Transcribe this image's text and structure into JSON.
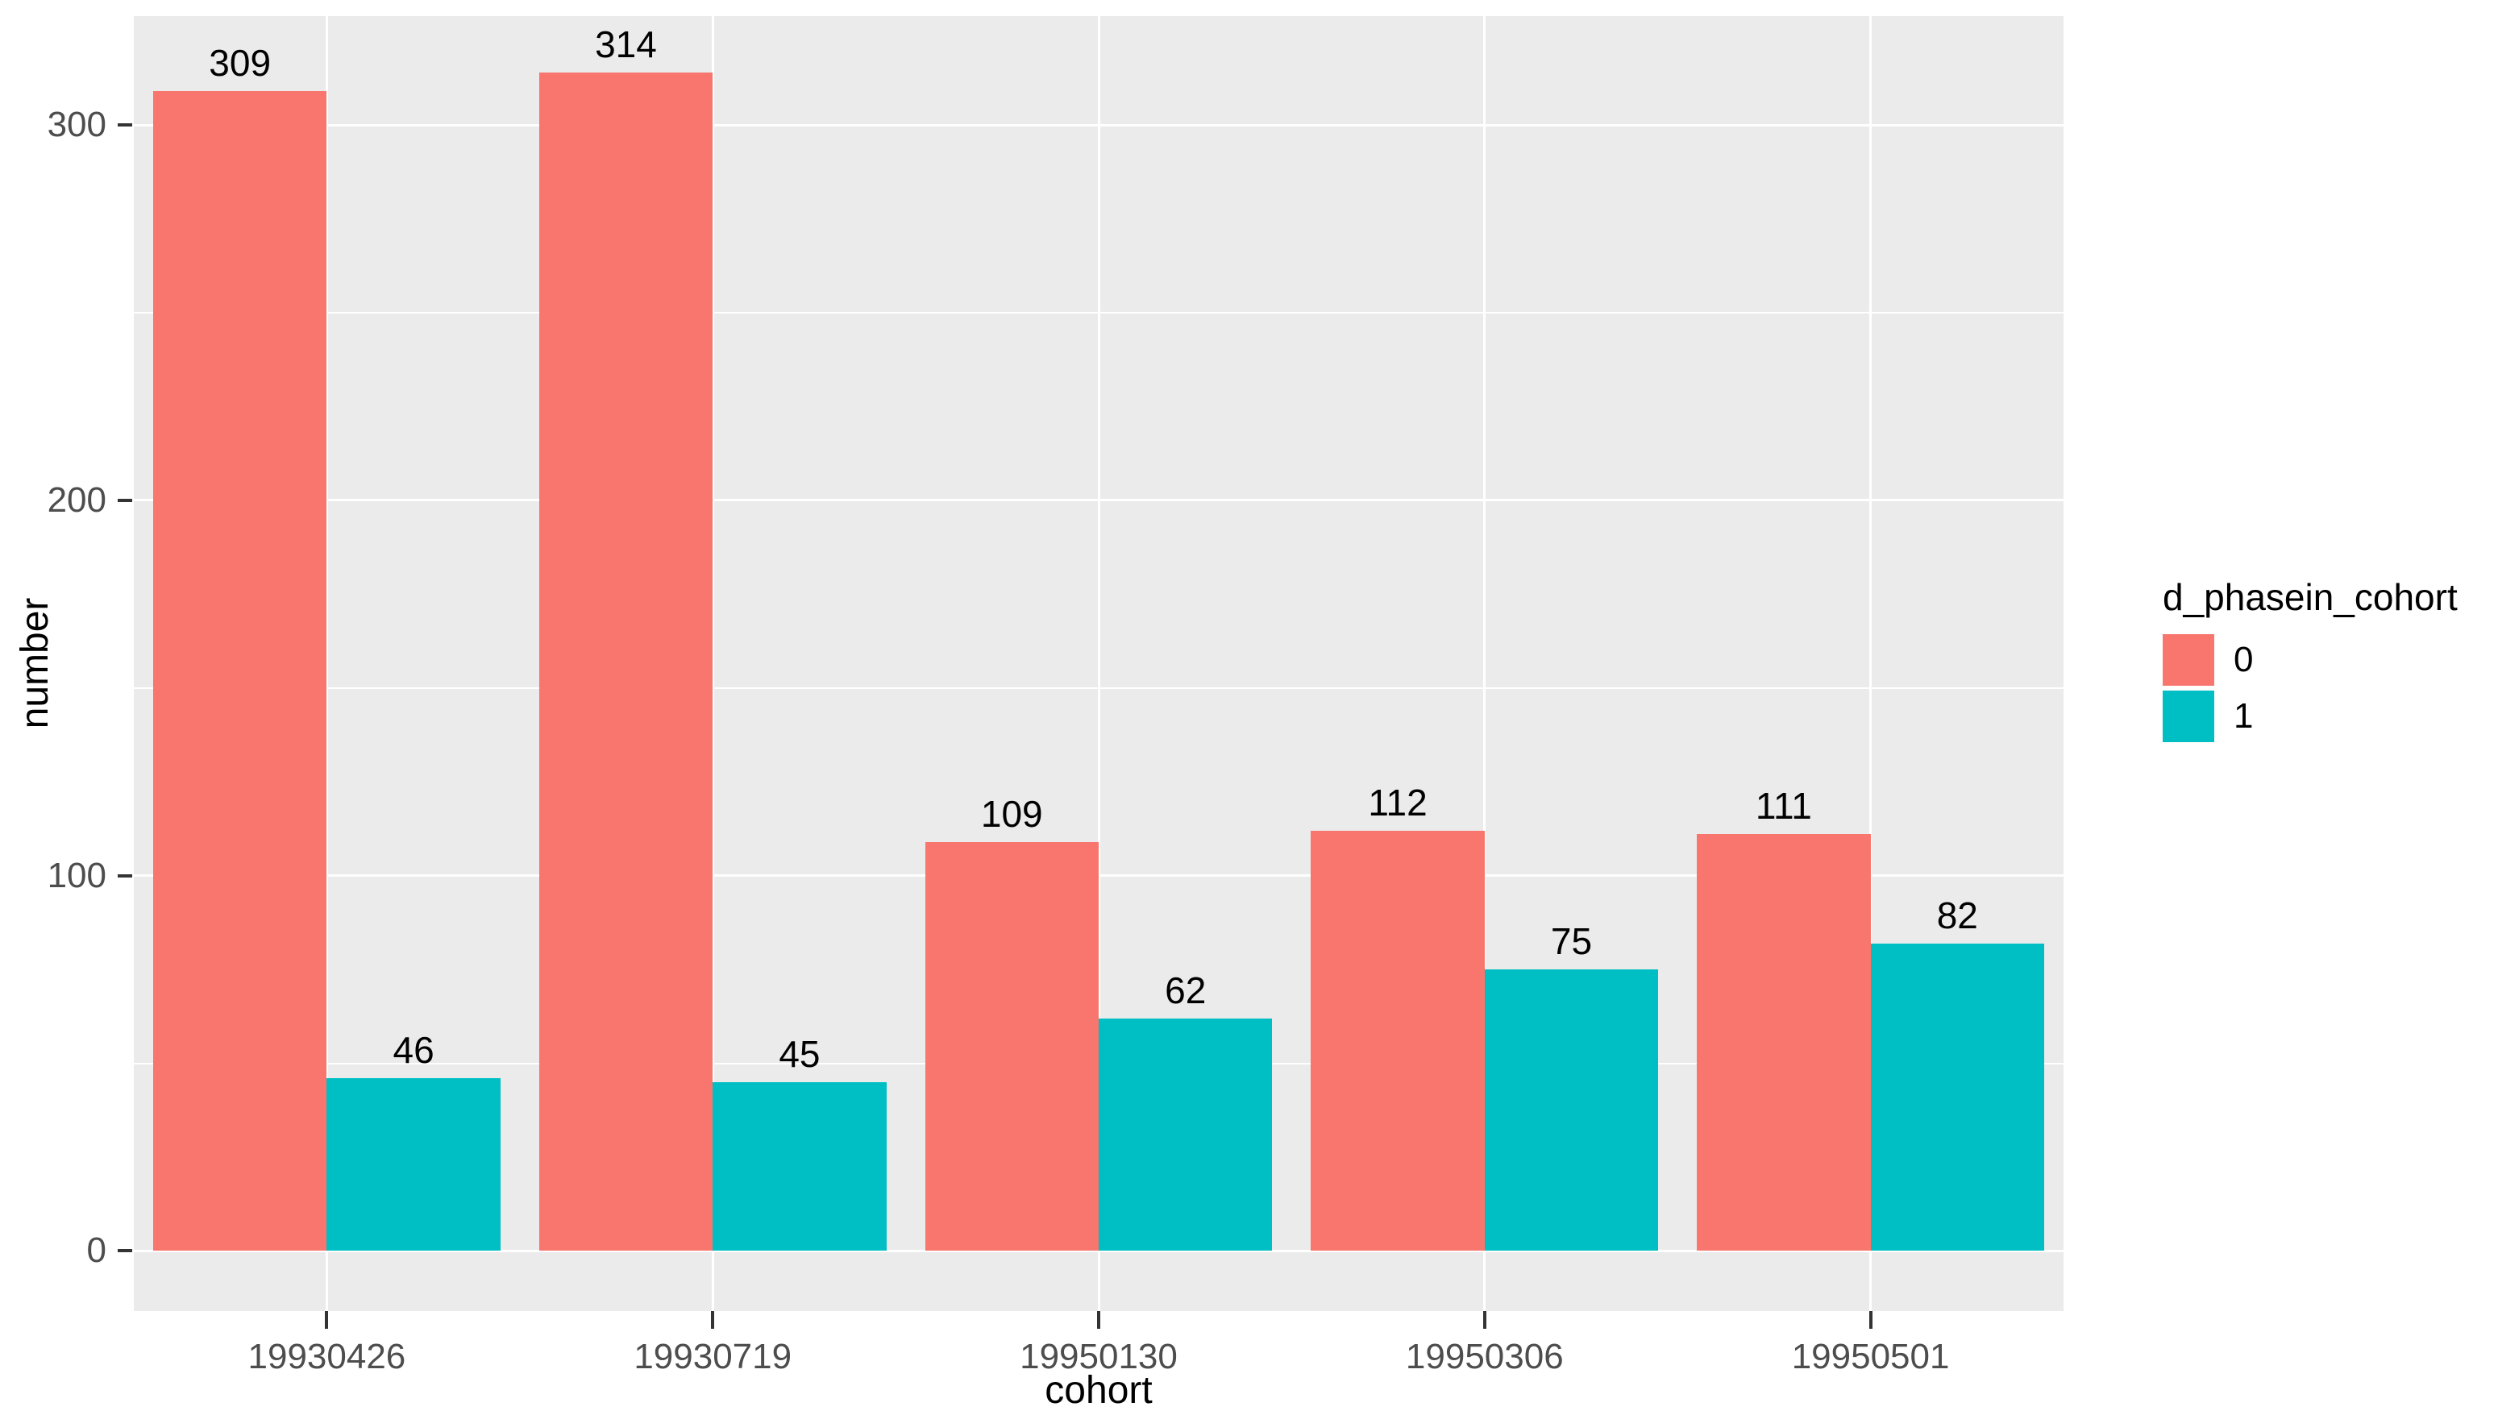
{
  "chart_data": {
    "type": "bar",
    "title": "",
    "categories": [
      "19930426",
      "19930719",
      "19950130",
      "19950306",
      "19950501"
    ],
    "series": [
      {
        "name": "0",
        "color": "#F8766D",
        "values": [
          309,
          314,
          109,
          112,
          111
        ]
      },
      {
        "name": "1",
        "color": "#00BFC4",
        "values": [
          46,
          45,
          62,
          75,
          82
        ]
      }
    ],
    "xlabel": "cohort",
    "ylabel": "number",
    "y_ticks": [
      0,
      100,
      200,
      300
    ],
    "y_minor_ticks": [
      50,
      150,
      250
    ],
    "ylim": [
      -16,
      329
    ],
    "grid": "on",
    "bar_value_labels": true,
    "legend_position": "right"
  },
  "axes": {
    "x_title": "cohort",
    "y_title": "number"
  },
  "legend": {
    "title": "d_phasein_cohort",
    "items": [
      {
        "label": "0",
        "color": "#F8766D"
      },
      {
        "label": "1",
        "color": "#00BFC4"
      }
    ]
  },
  "colors": {
    "panel_background": "#EBEBEB",
    "grid": "#FFFFFF",
    "tick_text": "#4D4D4D",
    "axis_title_text": "#000000",
    "tick_mark": "#333333",
    "series_0": "#F8766D",
    "series_1": "#00BFC4",
    "figure_background": "#FFFFFF"
  }
}
